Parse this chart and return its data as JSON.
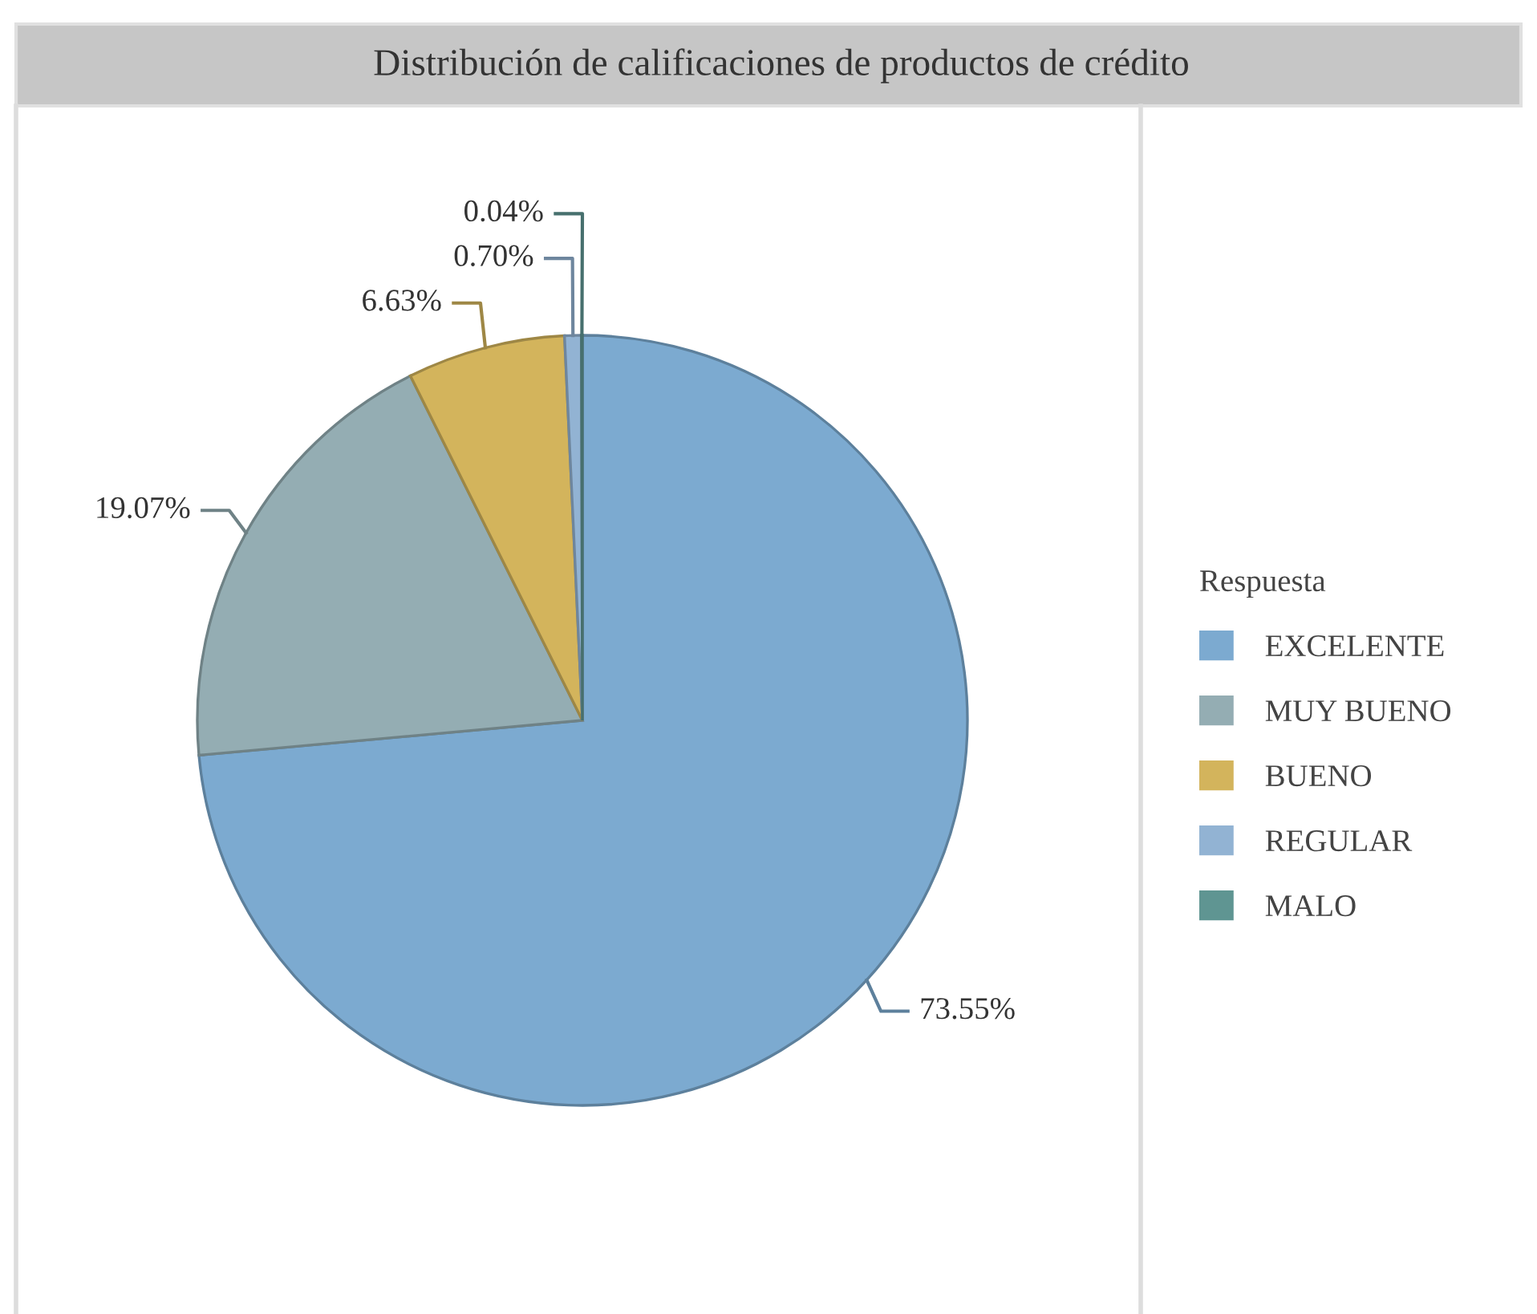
{
  "chart_data": {
    "type": "pie",
    "title": "Distribución de calificaciones de productos de crédito",
    "legend_title": "Respuesta",
    "categories": [
      "EXCELENTE",
      "MUY BUENO",
      "BUENO",
      "REGULAR",
      "MALO"
    ],
    "values": [
      73.55,
      19.07,
      6.63,
      0.7,
      0.04
    ],
    "value_labels": [
      "73.55%",
      "19.07%",
      "6.63%",
      "0.70%",
      "0.04%"
    ],
    "colors": [
      "#7caad0",
      "#94adb3",
      "#d3b45c",
      "#92b3d3",
      "#5f9592"
    ],
    "legend": "right"
  }
}
